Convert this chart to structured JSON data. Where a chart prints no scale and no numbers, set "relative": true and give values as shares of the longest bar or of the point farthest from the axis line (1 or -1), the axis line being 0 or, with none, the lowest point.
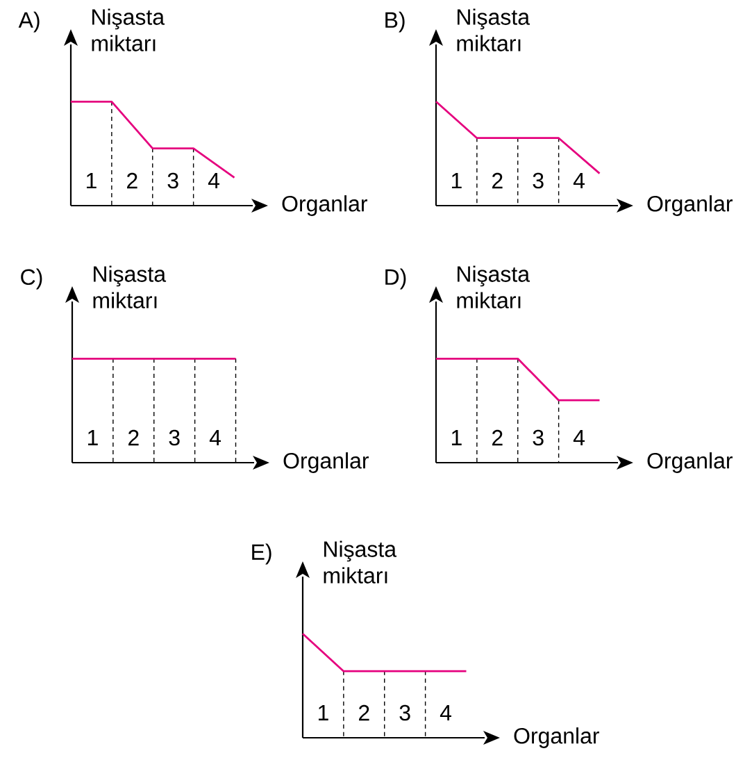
{
  "chart_data": [
    {
      "type": "line",
      "title": "A)",
      "xlabel": "Organlar",
      "ylabel": "Nişasta miktarı",
      "relative": true,
      "xlim": [
        0,
        4.45
      ],
      "xticks": [
        {
          "value": 0.5,
          "label": "1"
        },
        {
          "value": 1.5,
          "label": "2"
        },
        {
          "value": 2.5,
          "label": "3"
        },
        {
          "value": 3.5,
          "label": "4"
        }
      ],
      "series": [
        {
          "color": "#000000",
          "line_style": "dashed",
          "x": [
            1,
            1
          ],
          "values": [
            0,
            1
          ]
        },
        {
          "color": "#000000",
          "line_style": "dashed",
          "x": [
            2,
            2
          ],
          "values": [
            0,
            0.55
          ]
        },
        {
          "color": "#000000",
          "line_style": "dashed",
          "x": [
            3,
            3
          ],
          "values": [
            0,
            0.55
          ]
        },
        {
          "color": "#e5007e",
          "x": [
            0,
            1,
            2,
            3,
            4
          ],
          "values": [
            1,
            1,
            0.55,
            0.55,
            0.27
          ]
        }
      ]
    },
    {
      "type": "line",
      "title": "B)",
      "xlabel": "Organlar",
      "ylabel": "Nişasta miktarı",
      "relative": true,
      "xlim": [
        0,
        4.45
      ],
      "xticks": [
        {
          "value": 0.5,
          "label": "1"
        },
        {
          "value": 1.5,
          "label": "2"
        },
        {
          "value": 2.5,
          "label": "3"
        },
        {
          "value": 3.5,
          "label": "4"
        }
      ],
      "series": [
        {
          "color": "#000000",
          "line_style": "dashed",
          "x": [
            1,
            1
          ],
          "values": [
            0,
            0.65
          ]
        },
        {
          "color": "#000000",
          "line_style": "dashed",
          "x": [
            2,
            2
          ],
          "values": [
            0,
            0.65
          ]
        },
        {
          "color": "#000000",
          "line_style": "dashed",
          "x": [
            3,
            3
          ],
          "values": [
            0,
            0.65
          ]
        },
        {
          "color": "#e5007e",
          "x": [
            0,
            1,
            3,
            4
          ],
          "values": [
            1,
            0.65,
            0.65,
            0.31
          ]
        }
      ]
    },
    {
      "type": "line",
      "title": "C)",
      "xlabel": "Organlar",
      "ylabel": "Nişasta miktarı",
      "relative": true,
      "xlim": [
        0,
        4.45
      ],
      "xticks": [
        {
          "value": 0.5,
          "label": "1"
        },
        {
          "value": 1.5,
          "label": "2"
        },
        {
          "value": 2.5,
          "label": "3"
        },
        {
          "value": 3.5,
          "label": "4"
        }
      ],
      "series": [
        {
          "color": "#000000",
          "line_style": "dashed",
          "x": [
            1,
            1
          ],
          "values": [
            0,
            1
          ]
        },
        {
          "color": "#000000",
          "line_style": "dashed",
          "x": [
            2,
            2
          ],
          "values": [
            0,
            1
          ]
        },
        {
          "color": "#000000",
          "line_style": "dashed",
          "x": [
            3,
            3
          ],
          "values": [
            0,
            1
          ]
        },
        {
          "color": "#000000",
          "line_style": "dashed",
          "x": [
            4,
            4
          ],
          "values": [
            0,
            1
          ]
        },
        {
          "color": "#e5007e",
          "x": [
            0,
            4
          ],
          "values": [
            1,
            1
          ]
        }
      ]
    },
    {
      "type": "line",
      "title": "D)",
      "xlabel": "Organlar",
      "ylabel": "Nişasta miktarı",
      "relative": true,
      "xlim": [
        0,
        4.45
      ],
      "xticks": [
        {
          "value": 0.5,
          "label": "1"
        },
        {
          "value": 1.5,
          "label": "2"
        },
        {
          "value": 2.5,
          "label": "3"
        },
        {
          "value": 3.5,
          "label": "4"
        }
      ],
      "series": [
        {
          "color": "#000000",
          "line_style": "dashed",
          "x": [
            1,
            1
          ],
          "values": [
            0,
            1
          ]
        },
        {
          "color": "#000000",
          "line_style": "dashed",
          "x": [
            2,
            2
          ],
          "values": [
            0,
            1
          ]
        },
        {
          "color": "#000000",
          "line_style": "dashed",
          "x": [
            3,
            3
          ],
          "values": [
            0,
            0.6
          ]
        },
        {
          "color": "#e5007e",
          "x": [
            0,
            2,
            3,
            4
          ],
          "values": [
            1,
            1,
            0.6,
            0.6
          ]
        }
      ]
    },
    {
      "type": "line",
      "title": "E)",
      "xlabel": "Organlar",
      "ylabel": "Nişasta miktarı",
      "relative": true,
      "xlim": [
        0,
        4.45
      ],
      "xticks": [
        {
          "value": 0.5,
          "label": "1"
        },
        {
          "value": 1.5,
          "label": "2"
        },
        {
          "value": 2.5,
          "label": "3"
        },
        {
          "value": 3.5,
          "label": "4"
        }
      ],
      "series": [
        {
          "color": "#000000",
          "line_style": "dashed",
          "x": [
            1,
            1
          ],
          "values": [
            0,
            0.64
          ]
        },
        {
          "color": "#000000",
          "line_style": "dashed",
          "x": [
            2,
            2
          ],
          "values": [
            0,
            0.64
          ]
        },
        {
          "color": "#000000",
          "line_style": "dashed",
          "x": [
            3,
            3
          ],
          "values": [
            0,
            0.64
          ]
        },
        {
          "color": "#e5007e",
          "x": [
            0,
            1,
            4
          ],
          "values": [
            1,
            0.64,
            0.64
          ]
        }
      ]
    }
  ]
}
